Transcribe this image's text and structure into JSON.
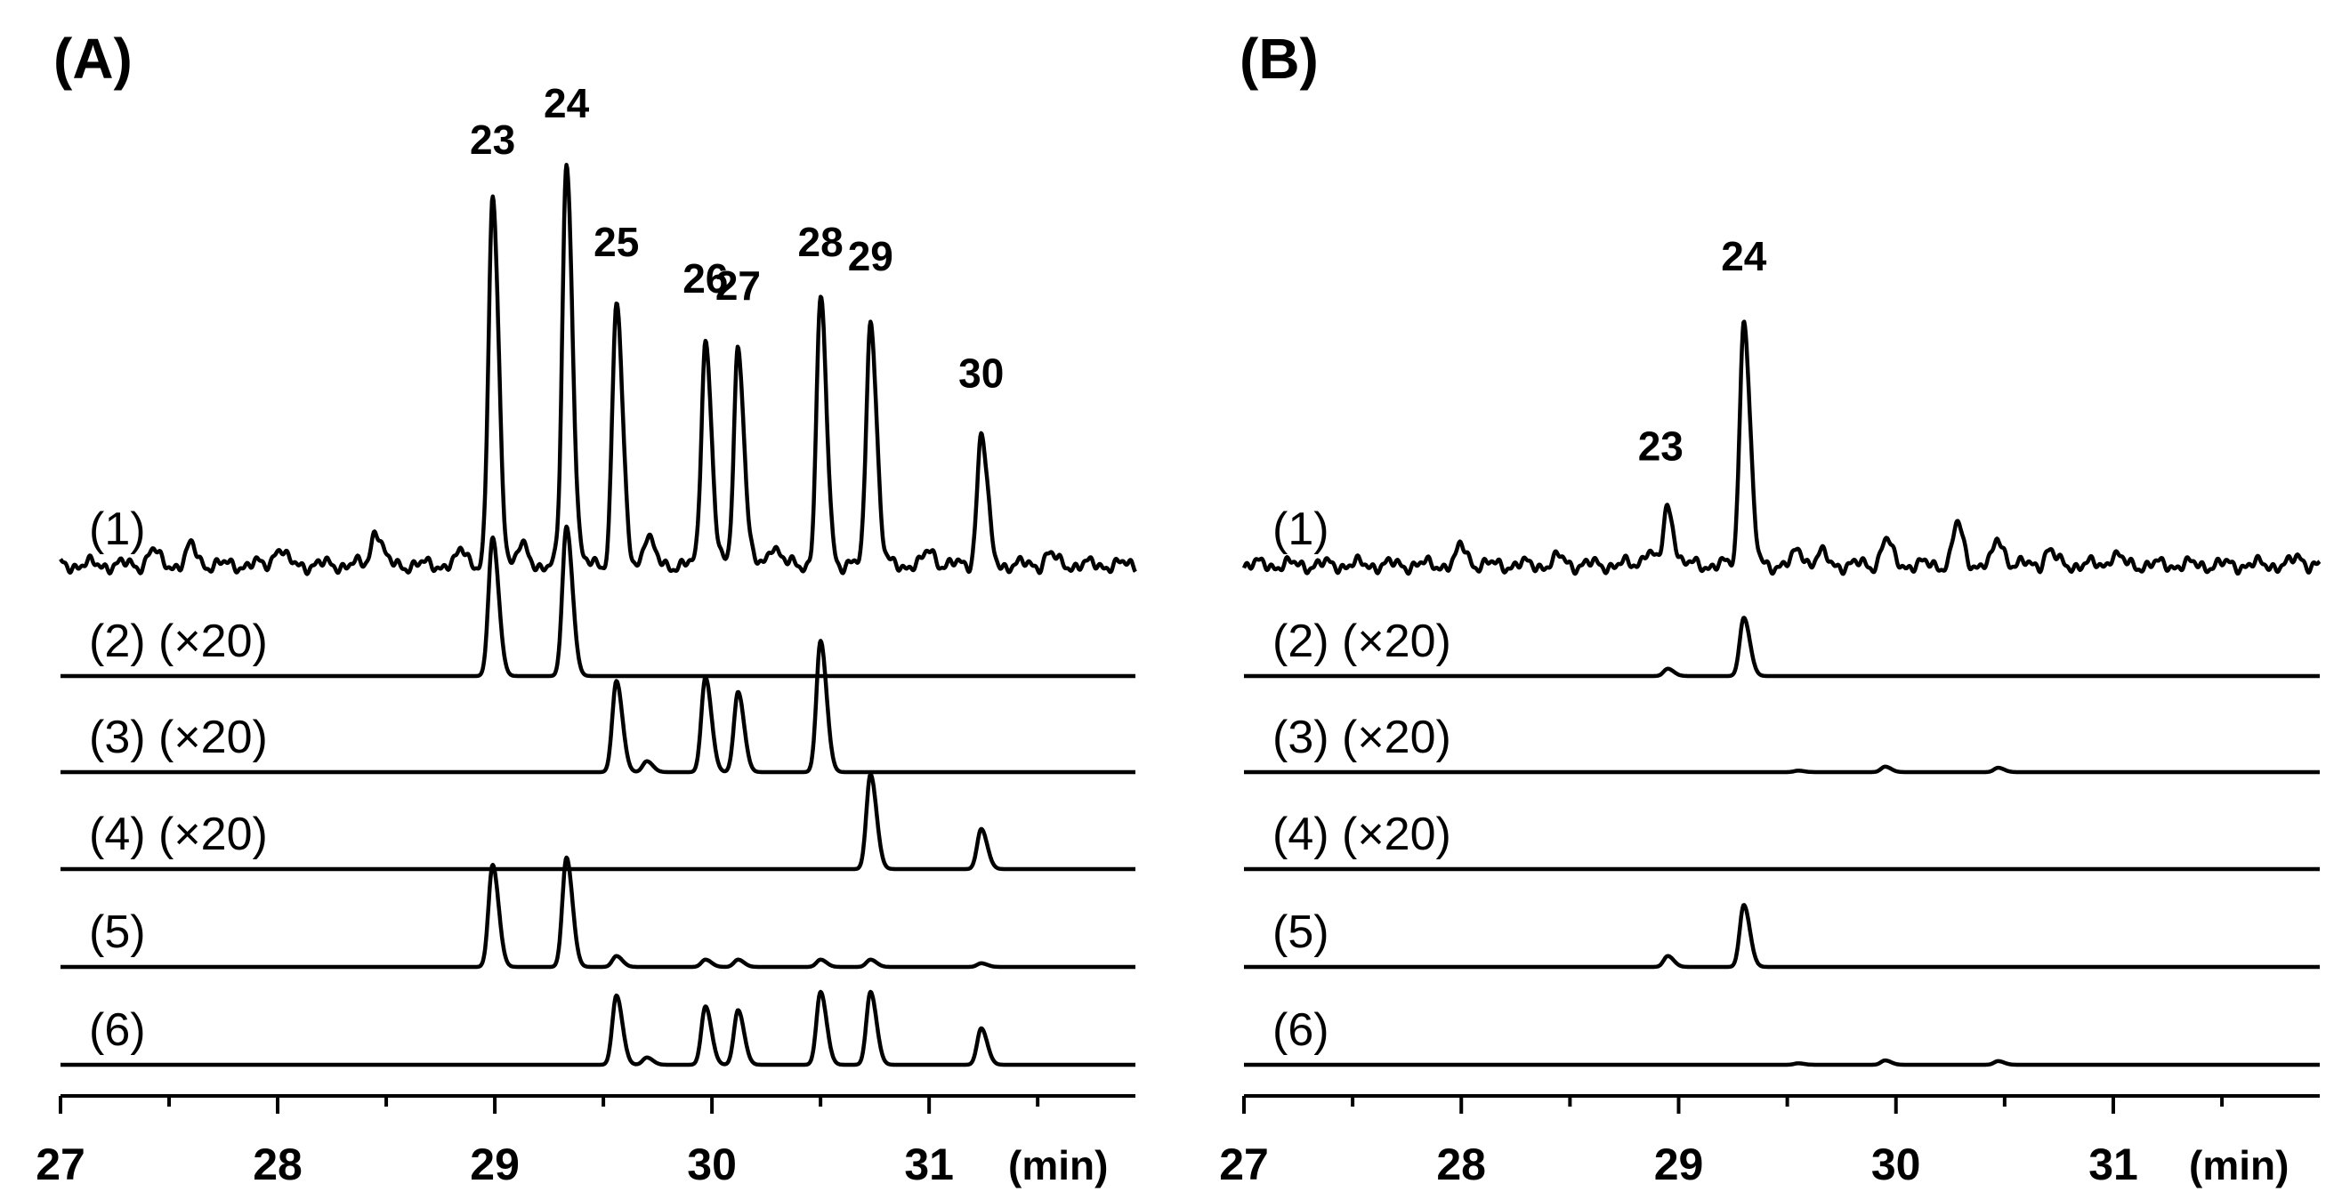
{
  "chart_data": [
    {
      "type": "line",
      "panel_label": "(A)",
      "x_unit_label": "(min)",
      "xlim": [
        27,
        31.95
      ],
      "x_ticks": [
        "27",
        "28",
        "29",
        "30",
        "31"
      ],
      "peak_labels": [
        {
          "text": "23",
          "x": 28.99
        },
        {
          "text": "24",
          "x": 29.33
        },
        {
          "text": "25",
          "x": 29.56
        },
        {
          "text": "26",
          "x": 29.97
        },
        {
          "text": "27",
          "x": 30.12
        },
        {
          "text": "28",
          "x": 30.5
        },
        {
          "text": "29",
          "x": 30.73
        },
        {
          "text": "30",
          "x": 31.24
        }
      ],
      "series": [
        {
          "label": "(1)",
          "noise": true,
          "peaks": [
            [
              27.42,
              0.04
            ],
            [
              27.6,
              0.05
            ],
            [
              28.0,
              0.05
            ],
            [
              28.45,
              0.1
            ],
            [
              28.85,
              0.04
            ],
            [
              28.99,
              1.0
            ],
            [
              29.12,
              0.05
            ],
            [
              29.33,
              1.1
            ],
            [
              29.56,
              0.72
            ],
            [
              29.7,
              0.08
            ],
            [
              29.97,
              0.62
            ],
            [
              30.12,
              0.6
            ],
            [
              30.28,
              0.06
            ],
            [
              30.5,
              0.72
            ],
            [
              30.73,
              0.68
            ],
            [
              31.0,
              0.04
            ],
            [
              31.24,
              0.36
            ],
            [
              31.55,
              0.03
            ]
          ]
        },
        {
          "label": "(2) (×20)",
          "noise": false,
          "peaks": [
            [
              28.99,
              0.38
            ],
            [
              29.33,
              0.41
            ]
          ]
        },
        {
          "label": "(3) (×20)",
          "noise": false,
          "peaks": [
            [
              29.56,
              0.25
            ],
            [
              29.7,
              0.03
            ],
            [
              29.97,
              0.26
            ],
            [
              30.12,
              0.22
            ],
            [
              30.5,
              0.36
            ]
          ]
        },
        {
          "label": "(4) (×20)",
          "noise": false,
          "peaks": [
            [
              30.73,
              0.26
            ],
            [
              31.24,
              0.11
            ]
          ]
        },
        {
          "label": "(5)",
          "noise": false,
          "peaks": [
            [
              28.99,
              0.28
            ],
            [
              29.33,
              0.3
            ],
            [
              29.56,
              0.03
            ],
            [
              29.97,
              0.02
            ],
            [
              30.12,
              0.02
            ],
            [
              30.5,
              0.02
            ],
            [
              30.73,
              0.02
            ],
            [
              31.24,
              0.01
            ]
          ]
        },
        {
          "label": "(6)",
          "noise": false,
          "peaks": [
            [
              29.56,
              0.19
            ],
            [
              29.7,
              0.02
            ],
            [
              29.97,
              0.16
            ],
            [
              30.12,
              0.15
            ],
            [
              30.5,
              0.2
            ],
            [
              30.73,
              0.2
            ],
            [
              31.24,
              0.1
            ]
          ]
        }
      ]
    },
    {
      "type": "line",
      "panel_label": "(B)",
      "x_unit_label": "(min)",
      "xlim": [
        27,
        31.95
      ],
      "x_ticks": [
        "27",
        "28",
        "29",
        "30",
        "31"
      ],
      "peak_labels": [
        {
          "text": "23",
          "x": 28.95
        },
        {
          "text": "24",
          "x": 29.3
        }
      ],
      "series": [
        {
          "label": "(1)",
          "noise": true,
          "peaks": [
            [
              28.0,
              0.05
            ],
            [
              28.45,
              0.02
            ],
            [
              28.85,
              0.04
            ],
            [
              28.95,
              0.16
            ],
            [
              29.3,
              0.68
            ],
            [
              29.55,
              0.04
            ],
            [
              29.65,
              0.03
            ],
            [
              29.95,
              0.07
            ],
            [
              30.28,
              0.11
            ],
            [
              30.47,
              0.07
            ],
            [
              30.7,
              0.04
            ],
            [
              31.0,
              0.03
            ],
            [
              31.85,
              0.02
            ]
          ]
        },
        {
          "label": "(2) (×20)",
          "noise": false,
          "peaks": [
            [
              28.95,
              0.02
            ],
            [
              29.3,
              0.16
            ]
          ]
        },
        {
          "label": "(3) (×20)",
          "noise": false,
          "peaks": [
            [
              29.55,
              0.004
            ],
            [
              29.95,
              0.015
            ],
            [
              30.47,
              0.012
            ]
          ]
        },
        {
          "label": "(4) (×20)",
          "noise": false,
          "peaks": []
        },
        {
          "label": "(5)",
          "noise": false,
          "peaks": [
            [
              28.95,
              0.03
            ],
            [
              29.3,
              0.17
            ]
          ]
        },
        {
          "label": "(6)",
          "noise": false,
          "peaks": [
            [
              29.55,
              0.004
            ],
            [
              29.95,
              0.012
            ],
            [
              30.47,
              0.01
            ]
          ]
        }
      ]
    }
  ]
}
